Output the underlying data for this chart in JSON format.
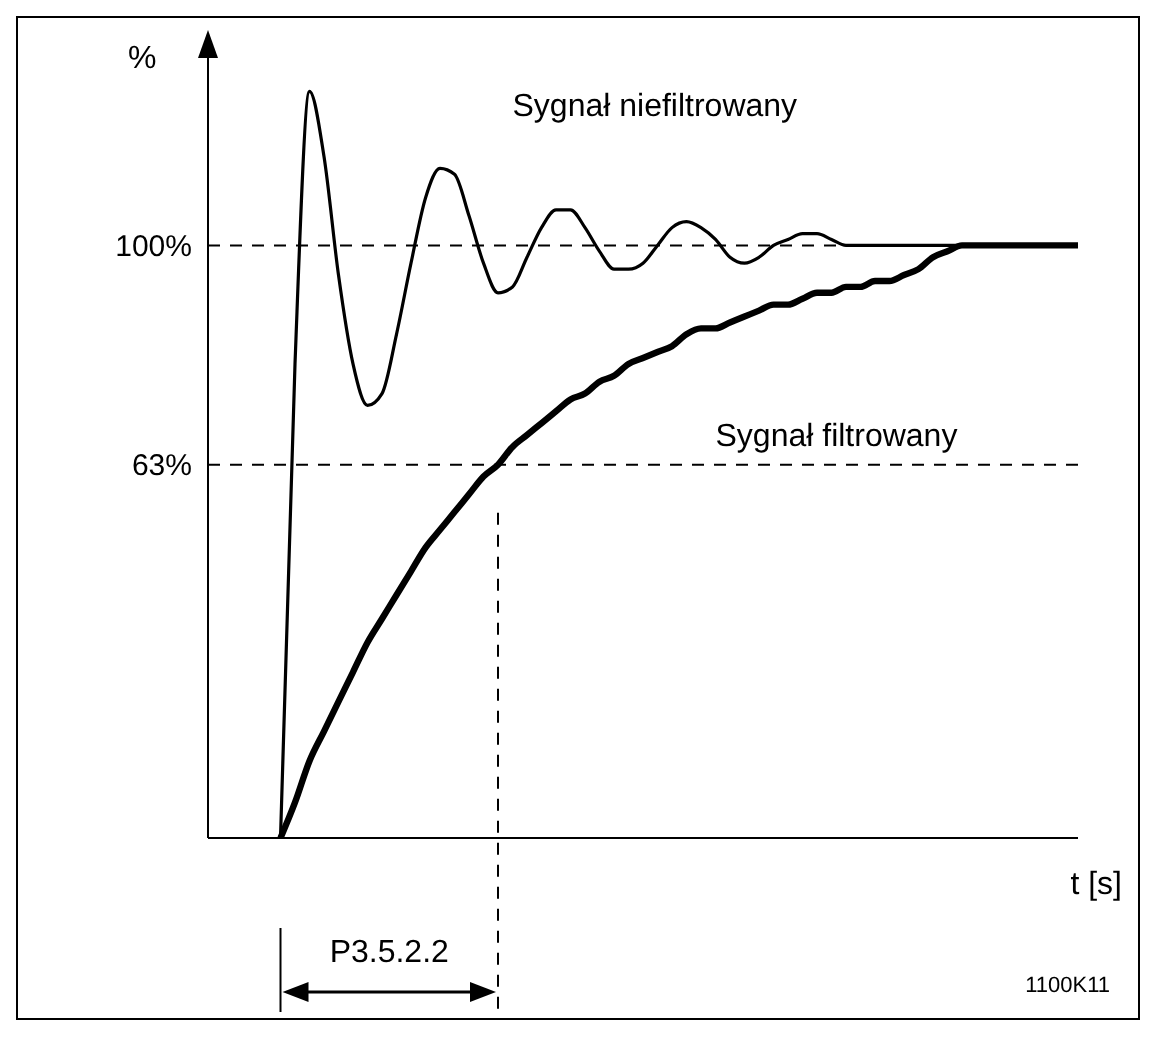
{
  "chart_data": {
    "type": "line",
    "xlabel": "t [s]",
    "ylabel": "%",
    "categories": [
      null,
      null,
      null,
      null,
      null,
      null,
      null,
      null,
      null,
      null,
      null,
      null,
      null,
      null,
      null,
      null,
      null,
      null,
      null,
      null,
      null,
      null,
      null,
      null,
      null,
      null,
      null,
      null,
      null,
      null,
      null,
      null,
      null,
      null,
      null,
      null,
      null,
      null,
      null,
      null,
      null,
      null,
      null,
      null,
      null,
      null,
      null,
      null,
      null,
      null,
      null,
      null,
      null,
      null,
      null,
      null,
      null,
      null,
      null,
      null,
      null
    ],
    "series": [
      {
        "name": "Sygnał niefiltrowany",
        "color": "#000000",
        "values": [
          null,
          null,
          null,
          null,
          null,
          0,
          80,
          126,
          115,
          95,
          80,
          73,
          75,
          85,
          97,
          108,
          113,
          112,
          105,
          97,
          92,
          93,
          98,
          103,
          106,
          106,
          103,
          99,
          96,
          96,
          97,
          100,
          103,
          104,
          103,
          101,
          98,
          97,
          98,
          100,
          101,
          102,
          102,
          101,
          100,
          100,
          100,
          100,
          100,
          100,
          100,
          100,
          100,
          100,
          100,
          100,
          100,
          100,
          100,
          100,
          100
        ]
      },
      {
        "name": "Sygnał filtrowany",
        "color": "#000000",
        "values": [
          null,
          null,
          null,
          null,
          null,
          0,
          6,
          13,
          18,
          23,
          28,
          33,
          37,
          41,
          45,
          49,
          52,
          55,
          58,
          61,
          63,
          66,
          68,
          70,
          72,
          74,
          75,
          77,
          78,
          80,
          81,
          82,
          83,
          85,
          86,
          86,
          87,
          88,
          89,
          90,
          90,
          91,
          92,
          92,
          93,
          93,
          94,
          94,
          95,
          96,
          98,
          99,
          100,
          100,
          100,
          100,
          100,
          100,
          100,
          100,
          100
        ]
      }
    ],
    "ylim": [
      0,
      135
    ],
    "yticks": [
      {
        "value": 63,
        "label": "63%"
      },
      {
        "value": 100,
        "label": "100%"
      }
    ],
    "ref_lines": [
      {
        "axis": "y",
        "value": 100,
        "line_style": "dashed",
        "color": "#000000"
      },
      {
        "axis": "y",
        "value": 63,
        "line_style": "dashed",
        "color": "#000000"
      }
    ],
    "annotations": [
      "P3.5.2.2",
      "1100K11"
    ],
    "grid": false,
    "marker": "none",
    "line_style": "solid",
    "tick_labels": "y"
  }
}
